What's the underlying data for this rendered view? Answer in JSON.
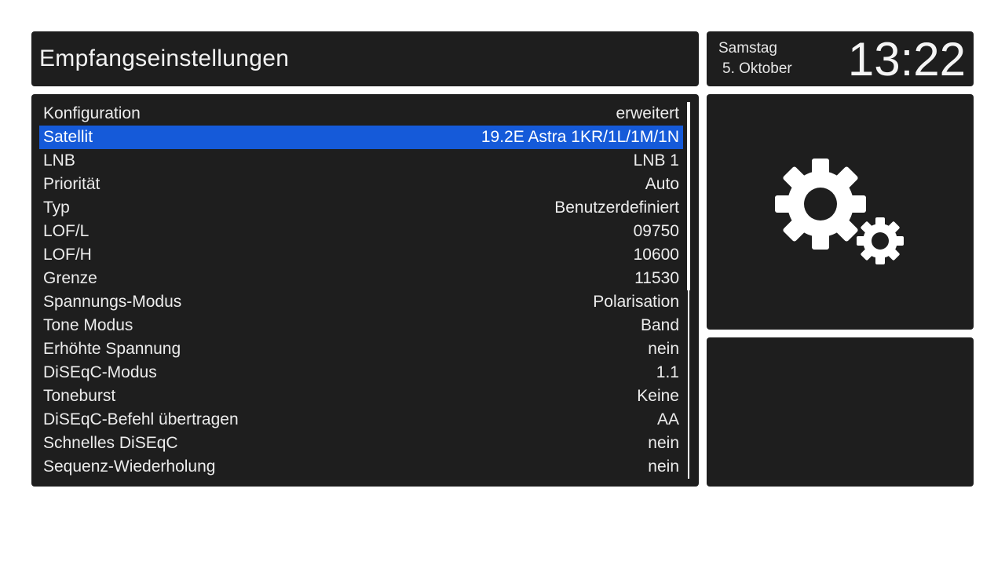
{
  "header": {
    "title": "Empfangseinstellungen"
  },
  "clock": {
    "day": "Samstag",
    "date": "5. Oktober",
    "time": "13:22"
  },
  "settings": {
    "rows": [
      {
        "label": "Konfiguration",
        "value": "erweitert"
      },
      {
        "label": "Satellit",
        "value": "19.2E Astra 1KR/1L/1M/1N",
        "selected": true
      },
      {
        "label": "LNB",
        "value": "LNB 1"
      },
      {
        "label": "Priorität",
        "value": "Auto"
      },
      {
        "label": "Typ",
        "value": "Benutzerdefiniert"
      },
      {
        "label": "LOF/L",
        "value": "09750"
      },
      {
        "label": "LOF/H",
        "value": "10600"
      },
      {
        "label": "Grenze",
        "value": "11530"
      },
      {
        "label": "Spannungs-Modus",
        "value": "Polarisation"
      },
      {
        "label": "Tone Modus",
        "value": "Band"
      },
      {
        "label": "Erhöhte Spannung",
        "value": "nein"
      },
      {
        "label": "DiSEqC-Modus",
        "value": "1.1"
      },
      {
        "label": "Toneburst",
        "value": "Keine"
      },
      {
        "label": "DiSEqC-Befehl übertragen",
        "value": "AA"
      },
      {
        "label": "Schnelles DiSEqC",
        "value": "nein"
      },
      {
        "label": "Sequenz-Wiederholung",
        "value": "nein"
      }
    ],
    "scroll_fraction": 0.5
  },
  "icons": {
    "settings_graphic": "gears-icon"
  },
  "colors": {
    "panel": "#1e1e1e",
    "selection": "#155ad9",
    "text": "#ececec"
  }
}
